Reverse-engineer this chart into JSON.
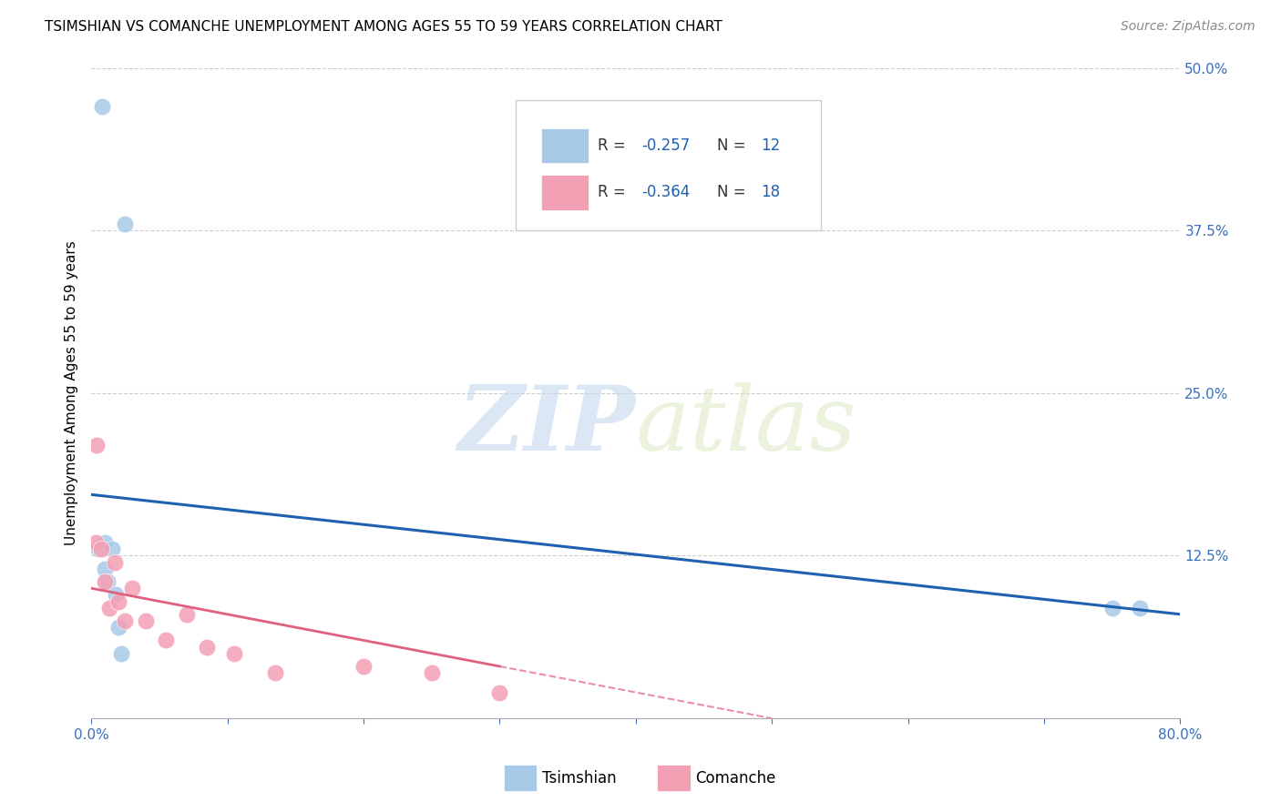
{
  "title": "TSIMSHIAN VS COMANCHE UNEMPLOYMENT AMONG AGES 55 TO 59 YEARS CORRELATION CHART",
  "source": "Source: ZipAtlas.com",
  "ylabel": "Unemployment Among Ages 55 to 59 years",
  "xlim": [
    0,
    0.8
  ],
  "ylim": [
    0,
    0.5
  ],
  "xticks": [
    0.0,
    0.1,
    0.2,
    0.3,
    0.4,
    0.5,
    0.6,
    0.7,
    0.8
  ],
  "xticklabels": [
    "0.0%",
    "",
    "",
    "",
    "",
    "",
    "",
    "",
    "80.0%"
  ],
  "yticks": [
    0.0,
    0.125,
    0.25,
    0.375,
    0.5
  ],
  "yticklabels": [
    "",
    "12.5%",
    "25.0%",
    "37.5%",
    "50.0%"
  ],
  "tsimshian_x": [
    0.005,
    0.01,
    0.01,
    0.012,
    0.015,
    0.018,
    0.02,
    0.022,
    0.025,
    0.75,
    0.77,
    0.008
  ],
  "tsimshian_y": [
    0.13,
    0.135,
    0.115,
    0.105,
    0.13,
    0.095,
    0.07,
    0.05,
    0.38,
    0.085,
    0.085,
    0.47
  ],
  "comanche_x": [
    0.003,
    0.007,
    0.01,
    0.013,
    0.017,
    0.02,
    0.025,
    0.03,
    0.04,
    0.055,
    0.07,
    0.085,
    0.105,
    0.135,
    0.2,
    0.25,
    0.3,
    0.004
  ],
  "comanche_y": [
    0.135,
    0.13,
    0.105,
    0.085,
    0.12,
    0.09,
    0.075,
    0.1,
    0.075,
    0.06,
    0.08,
    0.055,
    0.05,
    0.035,
    0.04,
    0.035,
    0.02,
    0.21
  ],
  "tsimshian_color": "#a8c8e8",
  "comanche_color": "#f4a0b4",
  "tsimshian_line_color": "#2060b0",
  "comanche_line_color": "#e06080",
  "tsimshian_r": "R = ",
  "tsimshian_r_val": "-0.257",
  "tsimshian_n": "N = ",
  "tsimshian_n_val": "12",
  "comanche_r": "R = ",
  "comanche_r_val": "-0.364",
  "comanche_n": "N = ",
  "comanche_n_val": "18",
  "legend_label_tsimshian": "Tsimshian",
  "legend_label_comanche": "Comanche",
  "watermark_zip": "ZIP",
  "watermark_atlas": "atlas",
  "background_color": "#ffffff",
  "grid_color": "#cccccc",
  "title_fontsize": 11,
  "axis_label_fontsize": 11,
  "tick_fontsize": 11,
  "source_fontsize": 10,
  "legend_fontsize": 12
}
